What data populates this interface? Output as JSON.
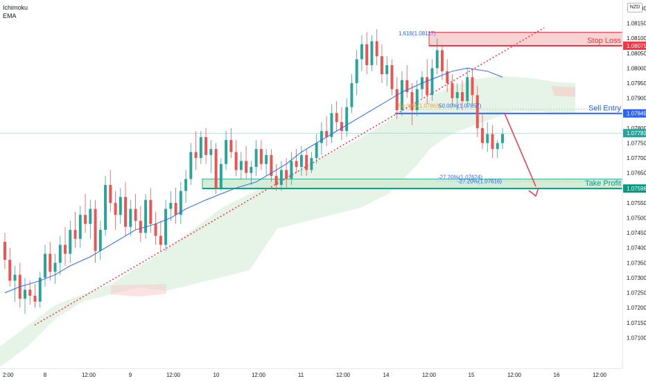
{
  "legend": {
    "line1": "Ichimoku",
    "line2": "EMA"
  },
  "currency": "NZD",
  "chart_data": {
    "type": "candlestick",
    "y_axis": {
      "min": 1.0705,
      "max": 1.082,
      "ticks": [
        "1.08200",
        "1.08150",
        "1.08100",
        "1.08050",
        "1.08000",
        "1.07950",
        "1.07900",
        "1.07850",
        "1.07800",
        "1.07750",
        "1.07700",
        "1.07650",
        "1.07600",
        "1.07550",
        "1.07500",
        "1.07450",
        "1.07400",
        "1.07350",
        "1.07300",
        "1.07250",
        "1.07200",
        "1.07150",
        "1.07100"
      ]
    },
    "x_axis": {
      "ticks": [
        "2:00",
        "8",
        "12:00",
        "9",
        "12:00",
        "10",
        "12:00",
        "11",
        "12:00",
        "14",
        "12:00",
        "15",
        "12:00",
        "16",
        "12:00"
      ]
    },
    "candles": [
      [
        1.0742,
        1.0745,
        1.0733,
        1.0736
      ],
      [
        1.0736,
        1.074,
        1.0727,
        1.0729
      ],
      [
        1.0729,
        1.0734,
        1.0722,
        1.0731
      ],
      [
        1.0731,
        1.0735,
        1.072,
        1.0723
      ],
      [
        1.0723,
        1.073,
        1.0718,
        1.0726
      ],
      [
        1.0726,
        1.0729,
        1.0721,
        1.0724
      ],
      [
        1.0724,
        1.0728,
        1.072,
        1.0722
      ],
      [
        1.0722,
        1.0732,
        1.072,
        1.073
      ],
      [
        1.073,
        1.0741,
        1.0727,
        1.0738
      ],
      [
        1.0738,
        1.0742,
        1.0729,
        1.0732
      ],
      [
        1.0732,
        1.0738,
        1.0728,
        1.0735
      ],
      [
        1.0735,
        1.0744,
        1.0731,
        1.0741
      ],
      [
        1.0741,
        1.0747,
        1.0734,
        1.0738
      ],
      [
        1.0738,
        1.0749,
        1.0735,
        1.0746
      ],
      [
        1.0746,
        1.0752,
        1.074,
        1.0743
      ],
      [
        1.0743,
        1.0754,
        1.074,
        1.0751
      ],
      [
        1.0751,
        1.0758,
        1.0745,
        1.0748
      ],
      [
        1.0748,
        1.0756,
        1.0743,
        1.0753
      ],
      [
        1.0753,
        1.0756,
        1.0735,
        1.0739
      ],
      [
        1.0739,
        1.0749,
        1.0736,
        1.0746
      ],
      [
        1.0746,
        1.0764,
        1.0744,
        1.0761
      ],
      [
        1.0761,
        1.0766,
        1.0752,
        1.0755
      ],
      [
        1.0755,
        1.0759,
        1.0746,
        1.0751
      ],
      [
        1.0751,
        1.076,
        1.0748,
        1.0757
      ],
      [
        1.0757,
        1.0762,
        1.0744,
        1.0747
      ],
      [
        1.0747,
        1.0756,
        1.0744,
        1.0753
      ],
      [
        1.0753,
        1.0758,
        1.0746,
        1.0749
      ],
      [
        1.0749,
        1.0754,
        1.0742,
        1.0745
      ],
      [
        1.0745,
        1.0758,
        1.0743,
        1.0756
      ],
      [
        1.0756,
        1.076,
        1.0745,
        1.0748
      ],
      [
        1.0748,
        1.0752,
        1.0741,
        1.0744
      ],
      [
        1.0744,
        1.0749,
        1.0739,
        1.0741
      ],
      [
        1.0741,
        1.0756,
        1.0739,
        1.0753
      ],
      [
        1.0753,
        1.0759,
        1.0749,
        1.0755
      ],
      [
        1.0755,
        1.076,
        1.0748,
        1.0751
      ],
      [
        1.0751,
        1.0762,
        1.0748,
        1.0759
      ],
      [
        1.0759,
        1.0766,
        1.0755,
        1.0763
      ],
      [
        1.0763,
        1.0775,
        1.0761,
        1.0772
      ],
      [
        1.0772,
        1.0779,
        1.0766,
        1.077
      ],
      [
        1.077,
        1.0779,
        1.0768,
        1.0777
      ],
      [
        1.0777,
        1.078,
        1.0768,
        1.0771
      ],
      [
        1.0771,
        1.0776,
        1.0765,
        1.0773
      ],
      [
        1.0773,
        1.0775,
        1.0758,
        1.076
      ],
      [
        1.076,
        1.077,
        1.0759,
        1.0768
      ],
      [
        1.0768,
        1.0779,
        1.0766,
        1.0776
      ],
      [
        1.0776,
        1.078,
        1.077,
        1.0772
      ],
      [
        1.0772,
        1.0776,
        1.0764,
        1.0766
      ],
      [
        1.0766,
        1.0772,
        1.0763,
        1.0769
      ],
      [
        1.0769,
        1.0774,
        1.0763,
        1.0765
      ],
      [
        1.0765,
        1.0769,
        1.0761,
        1.0767
      ],
      [
        1.0767,
        1.0776,
        1.0764,
        1.0773
      ],
      [
        1.0773,
        1.0776,
        1.0766,
        1.0768
      ],
      [
        1.0768,
        1.0773,
        1.0764,
        1.0771
      ],
      [
        1.0771,
        1.0773,
        1.0762,
        1.0764
      ],
      [
        1.0764,
        1.0768,
        1.0759,
        1.0761
      ],
      [
        1.0761,
        1.0769,
        1.0759,
        1.0766
      ],
      [
        1.0766,
        1.077,
        1.076,
        1.0763
      ],
      [
        1.0763,
        1.0772,
        1.0761,
        1.0769
      ],
      [
        1.0769,
        1.0773,
        1.0765,
        1.0767
      ],
      [
        1.0767,
        1.0774,
        1.0764,
        1.0771
      ],
      [
        1.0771,
        1.0773,
        1.0764,
        1.0766
      ],
      [
        1.0766,
        1.0772,
        1.0765,
        1.077
      ],
      [
        1.077,
        1.0778,
        1.0768,
        1.0775
      ],
      [
        1.0775,
        1.0782,
        1.0771,
        1.0779
      ],
      [
        1.0779,
        1.0784,
        1.0774,
        1.0777
      ],
      [
        1.0777,
        1.0788,
        1.0775,
        1.0785
      ],
      [
        1.0785,
        1.0789,
        1.0779,
        1.0782
      ],
      [
        1.0782,
        1.0787,
        1.0776,
        1.0779
      ],
      [
        1.0779,
        1.079,
        1.0777,
        1.0787
      ],
      [
        1.0787,
        1.0798,
        1.0785,
        1.0795
      ],
      [
        1.0795,
        1.0806,
        1.0791,
        1.0803
      ],
      [
        1.0803,
        1.0811,
        1.0799,
        1.0808
      ],
      [
        1.0808,
        1.0812,
        1.0798,
        1.0801
      ],
      [
        1.0801,
        1.0811,
        1.0799,
        1.0809
      ],
      [
        1.0809,
        1.0813,
        1.0801,
        1.0804
      ],
      [
        1.0804,
        1.0808,
        1.0795,
        1.0798
      ],
      [
        1.0798,
        1.0804,
        1.0794,
        1.0801
      ],
      [
        1.0801,
        1.0803,
        1.0791,
        1.0793
      ],
      [
        1.0793,
        1.0797,
        1.0783,
        1.0786
      ],
      [
        1.0786,
        1.0799,
        1.0784,
        1.0796
      ],
      [
        1.0796,
        1.0801,
        1.079,
        1.0792
      ],
      [
        1.0792,
        1.0795,
        1.0781,
        1.0786
      ],
      [
        1.0786,
        1.0796,
        1.0784,
        1.0793
      ],
      [
        1.0793,
        1.0799,
        1.079,
        1.0797
      ],
      [
        1.0797,
        1.0803,
        1.0788,
        1.0791
      ],
      [
        1.0791,
        1.0803,
        1.0789,
        1.08
      ],
      [
        1.08,
        1.081,
        1.0798,
        1.0806
      ],
      [
        1.0806,
        1.0808,
        1.0796,
        1.0799
      ],
      [
        1.0799,
        1.0803,
        1.0792,
        1.0795
      ],
      [
        1.0795,
        1.0798,
        1.0787,
        1.079
      ],
      [
        1.079,
        1.0795,
        1.0786,
        1.0792
      ],
      [
        1.0792,
        1.0796,
        1.0786,
        1.0789
      ],
      [
        1.0789,
        1.08,
        1.0787,
        1.0797
      ],
      [
        1.0797,
        1.08,
        1.0788,
        1.0791
      ],
      [
        1.0791,
        1.0794,
        1.0777,
        1.078
      ],
      [
        1.078,
        1.0785,
        1.0773,
        1.0775
      ],
      [
        1.0775,
        1.0782,
        1.0772,
        1.0778
      ],
      [
        1.0778,
        1.0781,
        1.077,
        1.0773
      ],
      [
        1.0773,
        1.0776,
        1.077,
        1.0775
      ],
      [
        1.0775,
        1.078,
        1.0773,
        1.0778
      ]
    ],
    "ema": [
      1.0725,
      1.0727,
      1.0729,
      1.0731,
      1.0734,
      1.0737,
      1.074,
      1.0743,
      1.0746,
      1.0748,
      1.075,
      1.0753,
      1.0756,
      1.0758,
      1.076,
      1.0762,
      1.0765,
      1.0768,
      1.0772,
      1.0776,
      1.0779,
      1.0782,
      1.0786,
      1.0789,
      1.0792,
      1.0795,
      1.0797,
      1.0799,
      1.08,
      1.0799,
      1.0797
    ],
    "annotations": {
      "fib_1618": "1.618(1.08117)",
      "fib_50": "50.00%(1.07857)",
      "fib_50_left": "50.00%(1.07863)",
      "fib_neg": "-27.20%(1.07624)",
      "fib_neg2": "-27.20%(1.07616)",
      "stop_loss": "Stop Loss",
      "sell_entry": "Sell Entry",
      "take_profit": "Take Profit"
    },
    "levels": {
      "stop_loss": {
        "label": "1.08075",
        "value": 1.08075,
        "color": "#f23645"
      },
      "sell_entry": {
        "label": "1.07849",
        "value": 1.07849,
        "color": "#2962ff"
      },
      "current": {
        "label": "1.07783",
        "value": 1.07783,
        "color": "#26a69a"
      },
      "take_profit": {
        "label": "1.07598",
        "value": 1.07598,
        "color": "#089981"
      }
    },
    "colors": {
      "up": "#26a69a",
      "down": "#ef5350",
      "ema": "#2962ff",
      "trendline": "#f23645",
      "cloud": "#c8e6c9"
    }
  }
}
